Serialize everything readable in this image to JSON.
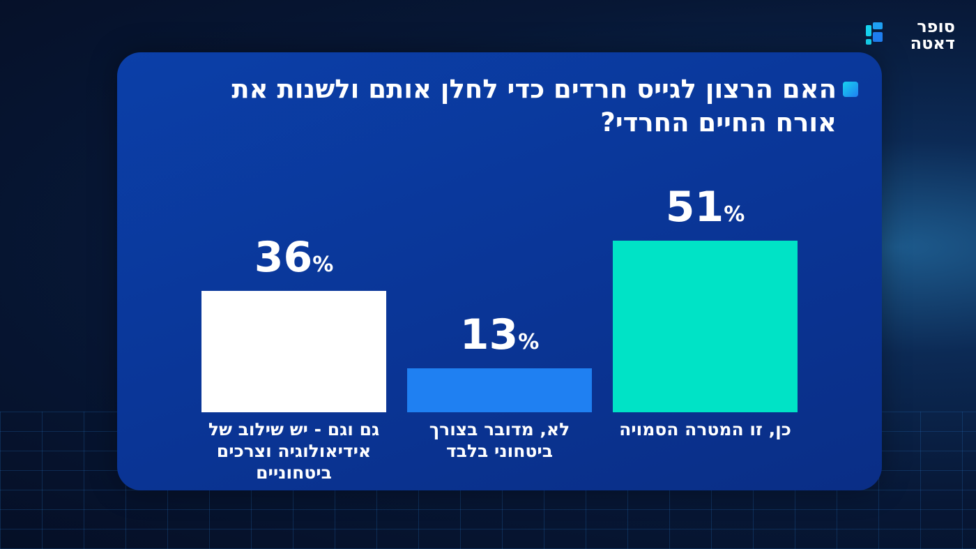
{
  "logo": "סופר דאטה",
  "chart_data": {
    "type": "bar",
    "title": "האם הרצון לגייס חרדים כדי לחלן אותם ולשנות את אורח החיים החרדי?",
    "categories": [
      "כן, זו המטרה הסמויה",
      "לא, מדובר בצורך ביטחוני בלבד",
      "גם וגם - יש שילוב של אידיאולוגיה וצרכים ביטחוניים"
    ],
    "values": [
      51,
      13,
      36
    ],
    "value_labels": [
      "51%",
      "13%",
      "36%"
    ],
    "colors": [
      "#00e3c6",
      "#1f80f2",
      "#ffffff"
    ],
    "ylim": [
      0,
      100
    ]
  }
}
